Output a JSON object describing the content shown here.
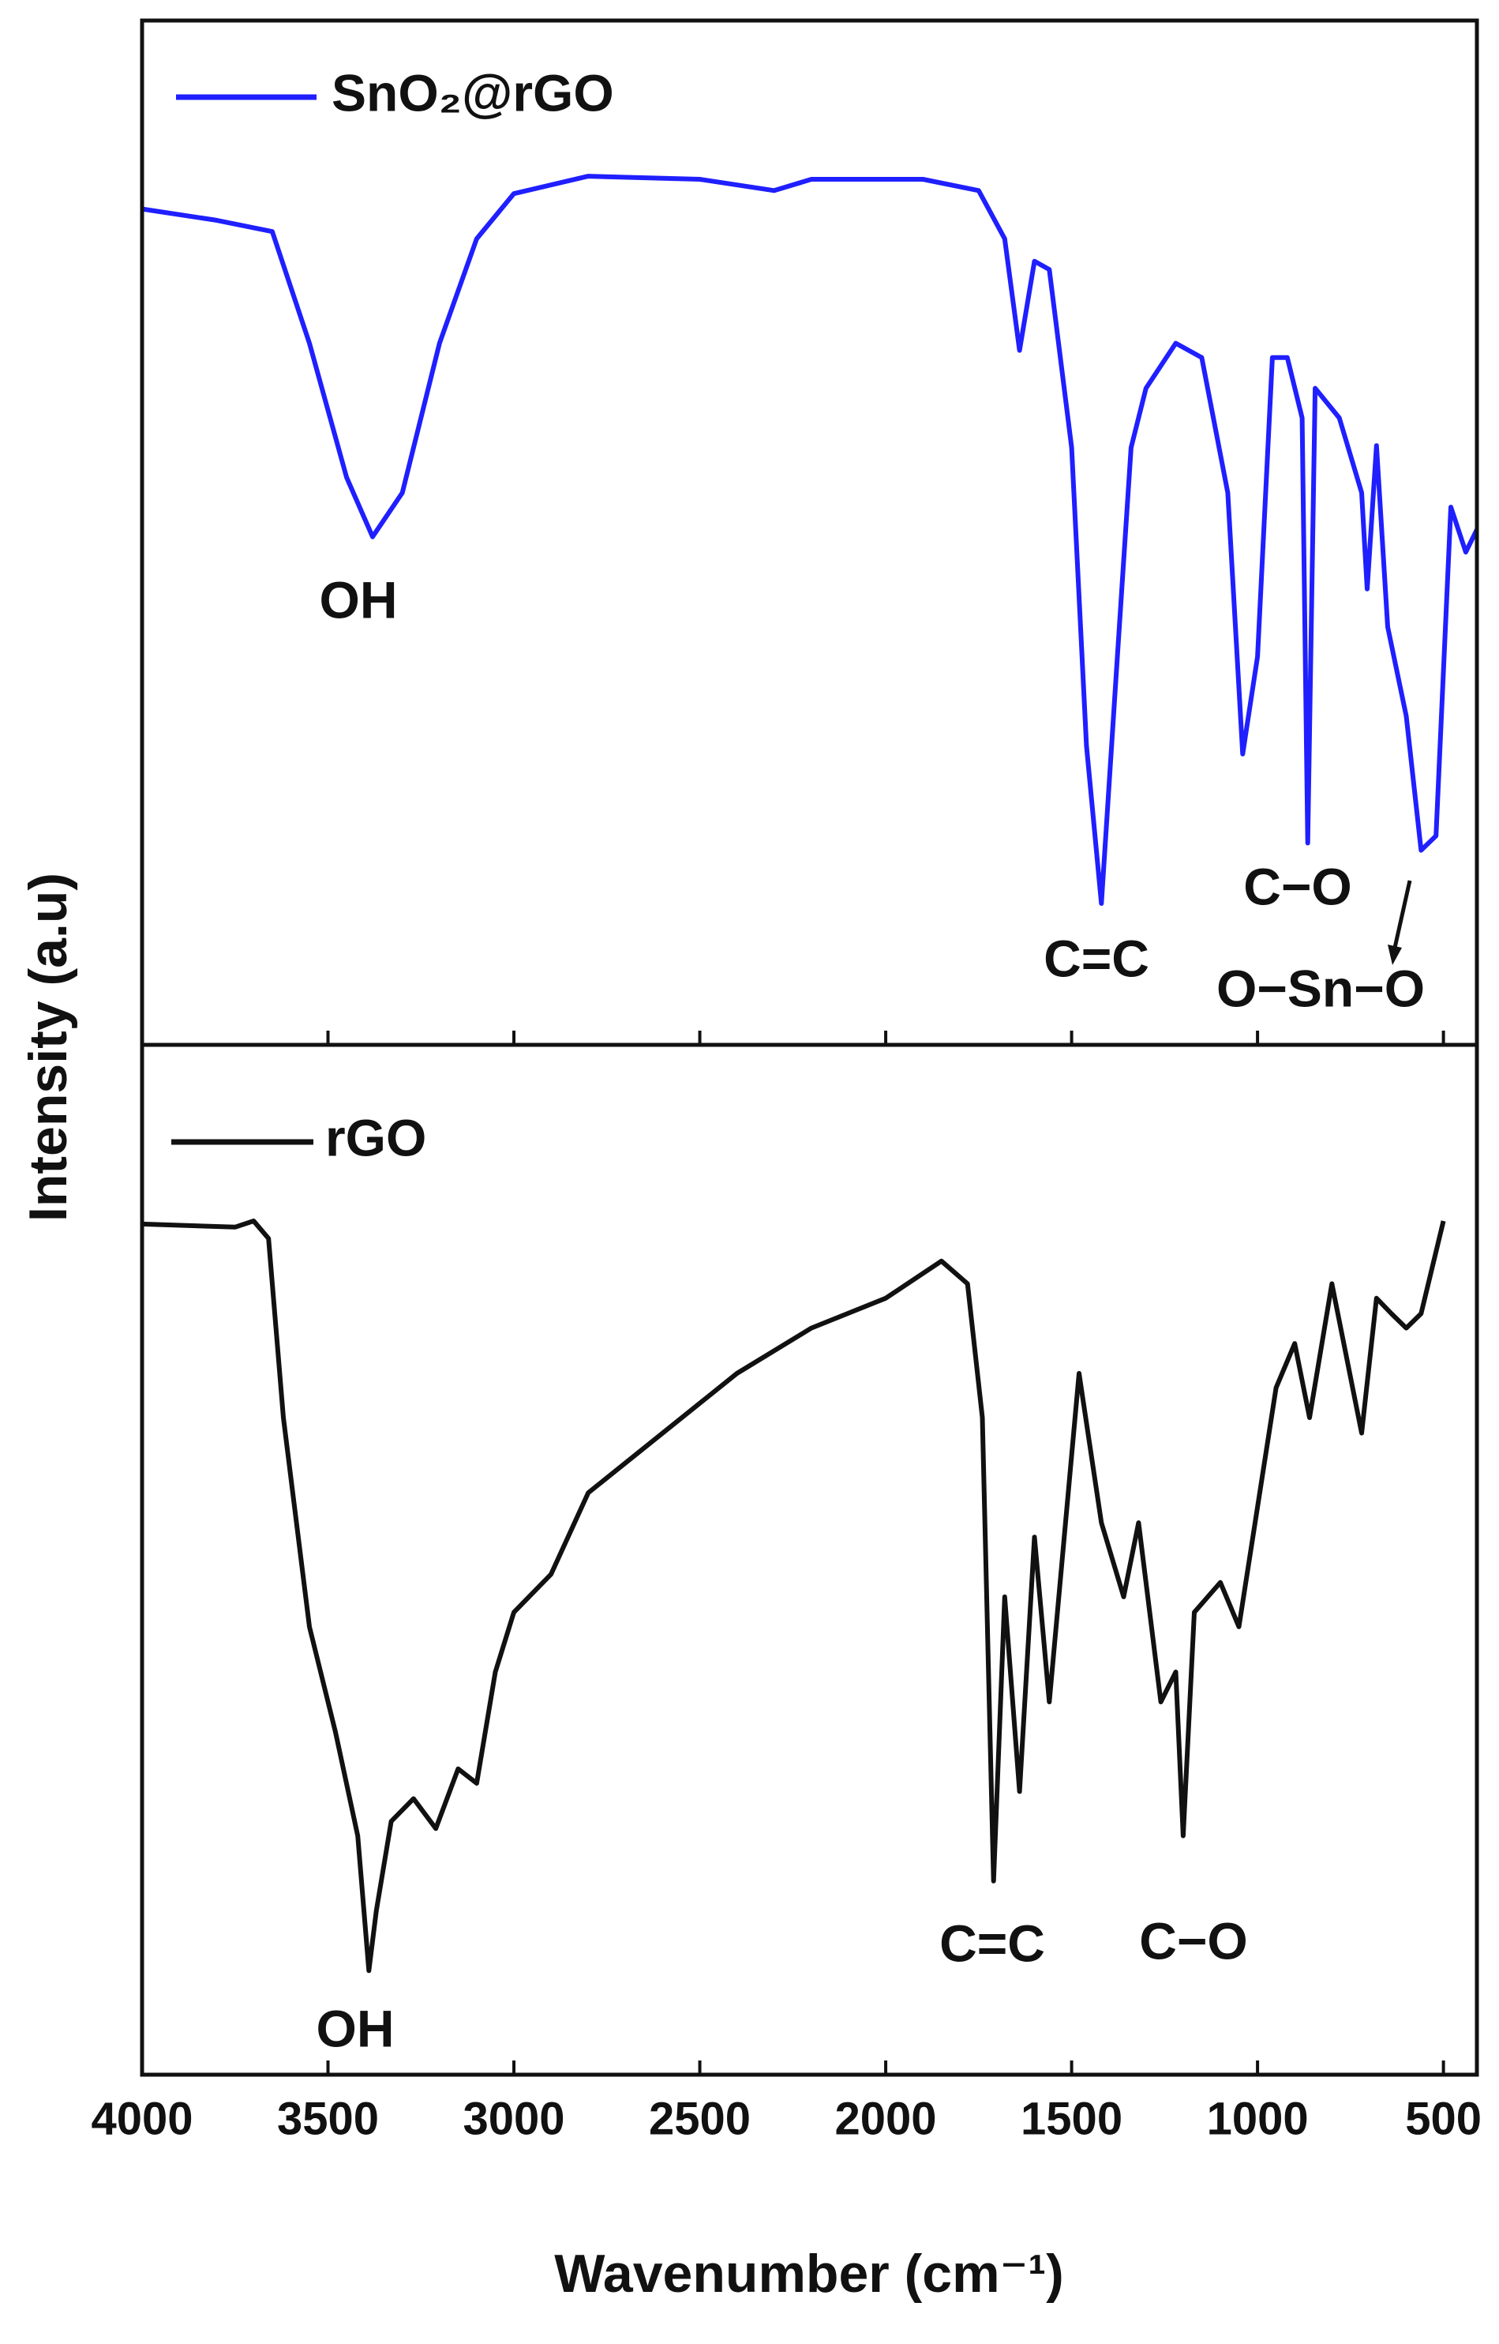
{
  "chart_data": [
    {
      "type": "line",
      "y_label": "Intensity (a.u)",
      "xlim": [
        4000,
        410
      ],
      "ylim": [
        0,
        100
      ],
      "xticks": [
        4000,
        3500,
        3000,
        2500,
        2000,
        1500,
        1000,
        500
      ],
      "x": [
        4000,
        3800,
        3650,
        3550,
        3450,
        3380,
        3300,
        3200,
        3100,
        3000,
        2800,
        2500,
        2300,
        2200,
        1900,
        1750,
        1680,
        1640,
        1600,
        1560,
        1500,
        1460,
        1420,
        1380,
        1340,
        1300,
        1220,
        1150,
        1080,
        1040,
        1000,
        960,
        920,
        880,
        865,
        845,
        780,
        720,
        705,
        680,
        650,
        600,
        560,
        520,
        480,
        440,
        410
      ],
      "series": [
        {
          "name": "SnO₂@rGO",
          "color": "#1f1fff",
          "values": [
            81.6,
            80.5,
            79.4,
            68.5,
            55.4,
            49.6,
            53.9,
            68.5,
            78.7,
            83.1,
            84.8,
            84.5,
            83.4,
            84.5,
            84.5,
            83.4,
            78.7,
            67.8,
            76.5,
            75.7,
            58.3,
            29.2,
            13.8,
            36.2,
            58.3,
            64.1,
            68.5,
            67.1,
            53.9,
            28.4,
            37.9,
            67.1,
            67.1,
            61.2,
            19.7,
            64.1,
            61.2,
            53.9,
            44.5,
            58.5,
            40.8,
            32.1,
            19.0,
            20.4,
            52.5,
            48.1,
            50.3
          ]
        }
      ],
      "annotations": [
        "OH",
        "C=C",
        "C−O",
        "O−Sn−O"
      ]
    },
    {
      "type": "line",
      "x_label": "Wavenumber (cm⁻¹)",
      "xlim": [
        4000,
        410
      ],
      "ylim": [
        0,
        100
      ],
      "xticks": [
        4000,
        3500,
        3000,
        2500,
        2000,
        1500,
        1000,
        500
      ],
      "x": [
        4000,
        3750,
        3700,
        3660,
        3620,
        3550,
        3480,
        3420,
        3390,
        3370,
        3330,
        3270,
        3210,
        3150,
        3100,
        3050,
        3000,
        2900,
        2800,
        2600,
        2400,
        2200,
        2000,
        1850,
        1780,
        1740,
        1710,
        1680,
        1640,
        1600,
        1560,
        1480,
        1420,
        1360,
        1320,
        1260,
        1220,
        1200,
        1170,
        1100,
        1050,
        950,
        900,
        860,
        800,
        720,
        680,
        640,
        600,
        560,
        500
      ],
      "series": [
        {
          "name": "rGO",
          "color": "#111111",
          "values": [
            82.6,
            82.3,
            82.9,
            81.2,
            63.8,
            43.5,
            33.3,
            23.2,
            10.1,
            15.9,
            24.6,
            26.8,
            23.9,
            29.7,
            28.3,
            39.1,
            44.9,
            48.6,
            56.5,
            62.3,
            68.1,
            72.5,
            75.4,
            79.0,
            76.8,
            63.8,
            18.8,
            46.4,
            27.5,
            52.2,
            36.2,
            68.1,
            53.6,
            46.4,
            53.6,
            36.2,
            39.1,
            23.2,
            44.9,
            47.8,
            43.5,
            66.7,
            71.0,
            63.8,
            76.8,
            62.3,
            75.4,
            73.9,
            72.5,
            73.9,
            82.9
          ]
        }
      ],
      "annotations": [
        "OH",
        "C=C",
        "C−O"
      ]
    }
  ]
}
